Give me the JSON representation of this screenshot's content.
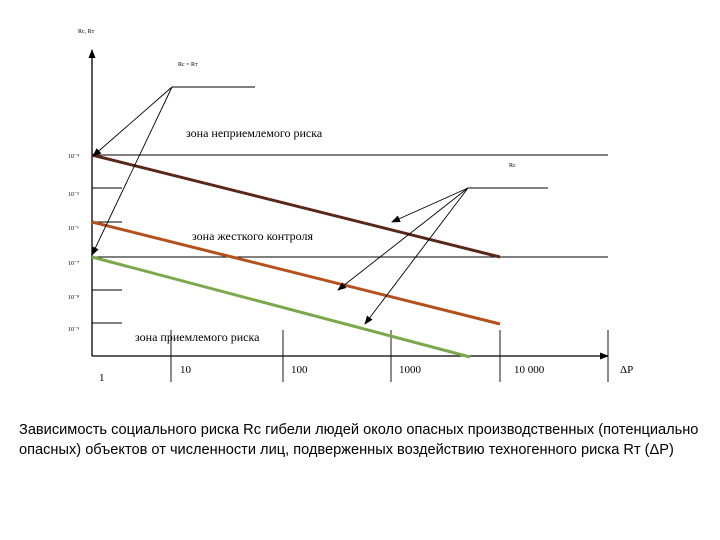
{
  "colors": {
    "line_rc": "#5a2618",
    "line_mid": "#b5501c",
    "line_low": "#7aa84a"
  },
  "axis": {
    "y_label": "Rc, Rт",
    "x_label": "ΔP",
    "y_ticks": [
      "10⁻⁴",
      "10⁻⁵",
      "10⁻⁶",
      "10⁻⁷",
      "10⁻⁸",
      "10⁻⁹"
    ],
    "x_ticks": [
      "1",
      "10",
      "100",
      "1000",
      "10 000"
    ]
  },
  "labels": {
    "top_callout": "Rc = Rт",
    "rc_label": "Rc",
    "zone_unacceptable": "зона неприемлемого риска",
    "zone_control": "зона жесткого контроля",
    "zone_acceptable": "зона приемлемого риска"
  },
  "caption": "Зависимость социального риска Rc гибели людей около опасных производственных (потенциально опасных) объектов от численности лиц, подверженных воздействию техногенного риска Rт (ΔP)"
}
